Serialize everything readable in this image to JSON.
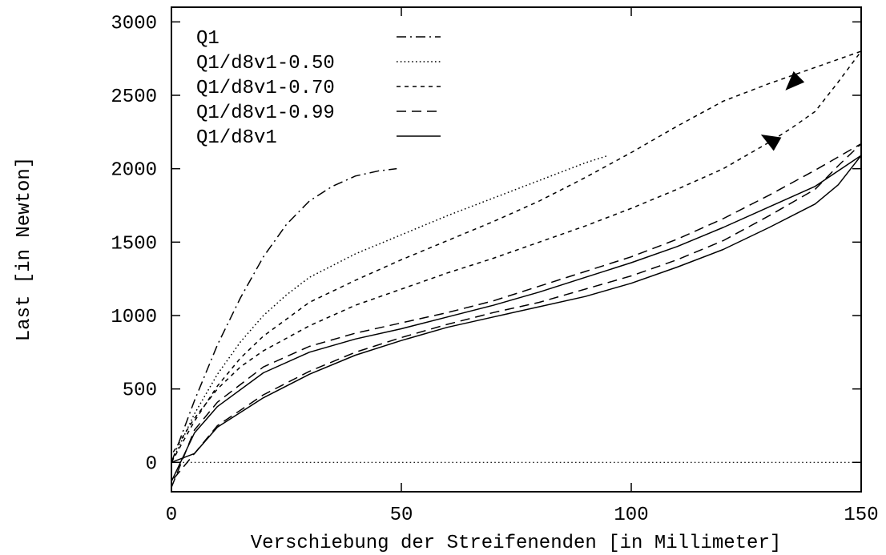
{
  "chart_data": {
    "type": "line",
    "xlabel": "Verschiebung der Streifenenden [in Millimeter]",
    "ylabel": "Last [in Newton]",
    "xlim": [
      0,
      150
    ],
    "ylim": [
      -200,
      3100
    ],
    "xticks": [
      0,
      50,
      100,
      150
    ],
    "yticks": [
      0,
      500,
      1000,
      1500,
      2000,
      2500,
      3000
    ],
    "grid": false,
    "legend_position": "top-left",
    "zero_line": {
      "y": 0,
      "style": "dotted"
    },
    "series": [
      {
        "name": "Q1",
        "style": "dashdot",
        "x": [
          0,
          5,
          10,
          15,
          20,
          25,
          30,
          35,
          40,
          45,
          49
        ],
        "y": [
          0,
          420,
          800,
          1120,
          1400,
          1620,
          1780,
          1880,
          1950,
          1985,
          2000
        ]
      },
      {
        "name": "Q1/d8v1-0.50",
        "style": "dotted",
        "x": [
          0,
          5,
          10,
          15,
          20,
          25,
          30,
          40,
          50,
          60,
          70,
          80,
          90,
          95
        ],
        "y": [
          0,
          330,
          600,
          820,
          1000,
          1140,
          1260,
          1420,
          1550,
          1680,
          1800,
          1920,
          2040,
          2090
        ]
      },
      {
        "name": "Q1/d8v1-0.70",
        "style": "shortdash",
        "x": [
          0,
          5,
          10,
          15,
          20,
          30,
          40,
          50,
          60,
          70,
          80,
          90,
          100,
          110,
          120,
          130,
          140,
          150,
          145,
          140,
          135,
          130,
          125,
          120,
          110,
          100,
          90,
          80,
          70,
          60,
          50,
          40,
          30,
          20,
          15,
          10,
          5,
          0
        ],
        "y": [
          0,
          280,
          520,
          710,
          860,
          1090,
          1240,
          1380,
          1510,
          1640,
          1780,
          1940,
          2110,
          2290,
          2460,
          2580,
          2690,
          2800,
          2590,
          2390,
          2280,
          2180,
          2090,
          2000,
          1860,
          1730,
          1610,
          1500,
          1390,
          1290,
          1180,
          1070,
          930,
          760,
          650,
          500,
          300,
          50
        ]
      },
      {
        "name": "Q1/d8v1-0.99",
        "style": "dash",
        "x": [
          0,
          5,
          10,
          20,
          30,
          40,
          50,
          60,
          70,
          80,
          90,
          100,
          110,
          120,
          130,
          140,
          150,
          145,
          140,
          130,
          120,
          110,
          100,
          90,
          80,
          70,
          60,
          50,
          40,
          30,
          20,
          10,
          5,
          0
        ],
        "y": [
          -170,
          220,
          410,
          650,
          790,
          880,
          950,
          1020,
          1100,
          1200,
          1300,
          1400,
          1520,
          1660,
          1820,
          1990,
          2170,
          2020,
          1860,
          1680,
          1510,
          1380,
          1270,
          1180,
          1090,
          1020,
          940,
          850,
          750,
          620,
          460,
          250,
          60,
          -130
        ]
      },
      {
        "name": "Q1/d8v1",
        "style": "solid",
        "x": [
          0,
          5,
          10,
          20,
          30,
          40,
          50,
          60,
          70,
          80,
          90,
          100,
          110,
          120,
          130,
          140,
          150,
          145,
          140,
          130,
          120,
          110,
          100,
          90,
          80,
          70,
          60,
          50,
          40,
          30,
          20,
          10,
          5,
          0
        ],
        "y": [
          -130,
          200,
          380,
          610,
          750,
          840,
          910,
          990,
          1070,
          1160,
          1260,
          1360,
          1470,
          1600,
          1740,
          1880,
          2090,
          1890,
          1760,
          1600,
          1450,
          1330,
          1220,
          1130,
          1060,
          990,
          920,
          830,
          730,
          600,
          440,
          240,
          60,
          0
        ]
      }
    ],
    "arrows": [
      {
        "x": 135,
        "y": 2580,
        "direction": "down-left"
      },
      {
        "x": 130,
        "y": 2200,
        "direction": "up-left"
      }
    ]
  }
}
